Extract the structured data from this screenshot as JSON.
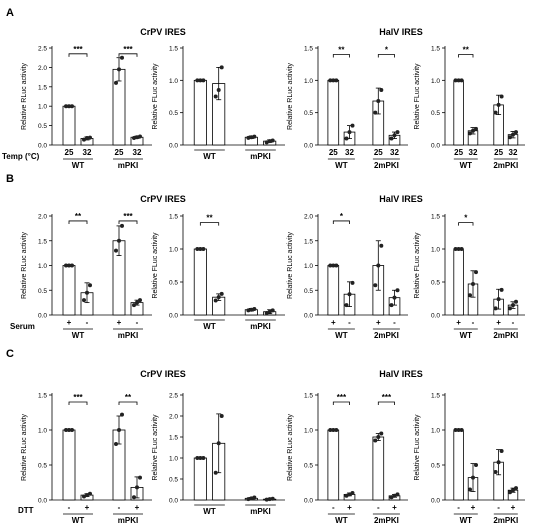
{
  "figure": {
    "section_labels": [
      "A",
      "B",
      "C"
    ],
    "titles": {
      "crpv": "CrPV IRES",
      "halv": "HalV IRES"
    },
    "row_axis_labels": [
      "Temp (°C)",
      "Serum",
      "DTT"
    ]
  },
  "chart_data": [
    {
      "id": "A1",
      "type": "bar",
      "ylabel": "Relative RLuc activity",
      "ylim": [
        0,
        2.5
      ],
      "yticks": [
        0,
        0.5,
        1,
        1.5,
        2,
        2.5
      ],
      "ticklabels": [
        "0.0",
        "0.5",
        "1.0",
        "1.5",
        "2.0",
        "2.5"
      ],
      "groups": [
        "WT",
        "mPKI"
      ],
      "conditions": [
        "25",
        "32"
      ],
      "values": [
        1.0,
        0.17,
        1.95,
        0.2
      ],
      "errors": [
        0,
        0.04,
        0.3,
        0.03
      ],
      "points": [
        [
          1,
          1,
          1
        ],
        [
          0.14,
          0.18,
          0.19
        ],
        [
          1.6,
          1.95,
          2.25
        ],
        [
          0.18,
          0.2,
          0.22
        ]
      ],
      "sig": [
        {
          "bars": [
            0,
            1
          ],
          "label": "***",
          "y": 2.35
        },
        {
          "bars": [
            2,
            3
          ],
          "label": "***",
          "y": 2.35
        }
      ]
    },
    {
      "id": "A2",
      "type": "bar",
      "ylabel": "Relative FLuc activity",
      "ylim": [
        0,
        1.5
      ],
      "yticks": [
        0,
        0.5,
        1,
        1.5
      ],
      "ticklabels": [
        "0.0",
        "0.5",
        "1.0",
        "1.5"
      ],
      "groups": [
        "WT",
        "mPKI"
      ],
      "conditions": [
        "",
        ""
      ],
      "values": [
        1.0,
        0.95,
        0.12,
        0.06
      ],
      "errors": [
        0,
        0.25,
        0.02,
        0.02
      ],
      "points": [
        [
          1,
          1,
          1
        ],
        [
          0.75,
          0.85,
          1.2
        ],
        [
          0.11,
          0.12,
          0.13
        ],
        [
          0.04,
          0.06,
          0.07
        ]
      ],
      "sig": []
    },
    {
      "id": "A3",
      "type": "bar",
      "ylabel": "Relative RLuc activity",
      "ylim": [
        0,
        1.5
      ],
      "yticks": [
        0,
        0.5,
        1,
        1.5
      ],
      "ticklabels": [
        "0.0",
        "0.5",
        "1.0",
        "1.5"
      ],
      "groups": [
        "WT",
        "2mPKI"
      ],
      "conditions": [
        "25",
        "32"
      ],
      "values": [
        1.0,
        0.2,
        0.68,
        0.15
      ],
      "errors": [
        0,
        0.1,
        0.2,
        0.05
      ],
      "points": [
        [
          1,
          1,
          1
        ],
        [
          0.1,
          0.2,
          0.3
        ],
        [
          0.5,
          0.68,
          0.85
        ],
        [
          0.1,
          0.15,
          0.2
        ]
      ],
      "sig": [
        {
          "bars": [
            0,
            1
          ],
          "label": "**",
          "y": 1.4
        },
        {
          "bars": [
            2,
            3
          ],
          "label": "*",
          "y": 1.4
        }
      ]
    },
    {
      "id": "A4",
      "type": "bar",
      "ylabel": "Relative FLuc activity",
      "ylim": [
        0,
        1.5
      ],
      "yticks": [
        0,
        0.5,
        1,
        1.5
      ],
      "ticklabels": [
        "0.0",
        "0.5",
        "1.0",
        "1.5"
      ],
      "groups": [
        "WT",
        "2mPKI"
      ],
      "conditions": [
        "25",
        "32"
      ],
      "values": [
        1.0,
        0.22,
        0.62,
        0.16
      ],
      "errors": [
        0,
        0.05,
        0.15,
        0.05
      ],
      "points": [
        [
          1,
          1,
          1
        ],
        [
          0.18,
          0.22,
          0.25
        ],
        [
          0.5,
          0.62,
          0.75
        ],
        [
          0.12,
          0.16,
          0.2
        ]
      ],
      "sig": [
        {
          "bars": [
            0,
            1
          ],
          "label": "**",
          "y": 1.4
        }
      ]
    },
    {
      "id": "B1",
      "type": "bar",
      "ylabel": "Relative RLuc activity",
      "ylim": [
        0,
        2.0
      ],
      "yticks": [
        0,
        0.5,
        1,
        1.5,
        2
      ],
      "ticklabels": [
        "0.0",
        "0.5",
        "1.0",
        "1.5",
        "2.0"
      ],
      "groups": [
        "WT",
        "mPKI"
      ],
      "conditions": [
        "+",
        "-"
      ],
      "values": [
        1.0,
        0.45,
        1.5,
        0.25
      ],
      "errors": [
        0,
        0.2,
        0.3,
        0.05
      ],
      "points": [
        [
          1,
          1,
          1
        ],
        [
          0.3,
          0.45,
          0.6
        ],
        [
          1.3,
          1.5,
          1.8
        ],
        [
          0.2,
          0.25,
          0.3
        ]
      ],
      "sig": [
        {
          "bars": [
            0,
            1
          ],
          "label": "**",
          "y": 1.9
        },
        {
          "bars": [
            2,
            3
          ],
          "label": "***",
          "y": 1.9
        }
      ]
    },
    {
      "id": "B2",
      "type": "bar",
      "ylabel": "Relative FLuc activity",
      "ylim": [
        0,
        1.5
      ],
      "yticks": [
        0,
        0.5,
        1,
        1.5
      ],
      "ticklabels": [
        "0.0",
        "0.5",
        "1.0",
        "1.5"
      ],
      "groups": [
        "WT",
        "mPKI"
      ],
      "conditions": [
        "",
        ""
      ],
      "values": [
        1.0,
        0.27,
        0.08,
        0.05
      ],
      "errors": [
        0,
        0.05,
        0.02,
        0.03
      ],
      "points": [
        [
          1,
          1,
          1
        ],
        [
          0.22,
          0.27,
          0.32
        ],
        [
          0.07,
          0.08,
          0.09
        ],
        [
          0.03,
          0.05,
          0.07
        ]
      ],
      "sig": [
        {
          "bars": [
            0,
            1
          ],
          "label": "**",
          "y": 1.4
        }
      ]
    },
    {
      "id": "B3",
      "type": "bar",
      "ylabel": "Relative RLuc activity",
      "ylim": [
        0,
        2.0
      ],
      "yticks": [
        0,
        0.5,
        1,
        1.5,
        2
      ],
      "ticklabels": [
        "0.0",
        "0.5",
        "1.0",
        "1.5",
        "2.0"
      ],
      "groups": [
        "WT",
        "2mPKI"
      ],
      "conditions": [
        "+",
        "-"
      ],
      "values": [
        1.0,
        0.42,
        1.0,
        0.35
      ],
      "errors": [
        0,
        0.25,
        0.5,
        0.15
      ],
      "points": [
        [
          1,
          1,
          1
        ],
        [
          0.2,
          0.42,
          0.65
        ],
        [
          0.6,
          1.0,
          1.4
        ],
        [
          0.2,
          0.35,
          0.5
        ]
      ],
      "sig": [
        {
          "bars": [
            0,
            1
          ],
          "label": "*",
          "y": 1.9
        }
      ]
    },
    {
      "id": "B4",
      "type": "bar",
      "ylabel": "Relative FLuc activity",
      "ylim": [
        0,
        1.5
      ],
      "yticks": [
        0,
        0.5,
        1,
        1.5
      ],
      "ticklabels": [
        "0.0",
        "0.5",
        "1.0",
        "1.5"
      ],
      "groups": [
        "WT",
        "2mPKI"
      ],
      "conditions": [
        "+",
        "-"
      ],
      "values": [
        1.0,
        0.47,
        0.24,
        0.15
      ],
      "errors": [
        0,
        0.2,
        0.15,
        0.05
      ],
      "points": [
        [
          1,
          1,
          1
        ],
        [
          0.3,
          0.47,
          0.65
        ],
        [
          0.1,
          0.24,
          0.38
        ],
        [
          0.1,
          0.15,
          0.2
        ]
      ],
      "sig": [
        {
          "bars": [
            0,
            1
          ],
          "label": "*",
          "y": 1.4
        }
      ]
    },
    {
      "id": "C1",
      "type": "bar",
      "ylabel": "Relative RLuc activity",
      "ylim": [
        0,
        1.5
      ],
      "yticks": [
        0,
        0.5,
        1,
        1.5
      ],
      "ticklabels": [
        "0.0",
        "0.5",
        "1.0",
        "1.5"
      ],
      "groups": [
        "WT",
        "mPKI"
      ],
      "conditions": [
        "-",
        "+"
      ],
      "values": [
        1.0,
        0.07,
        1.0,
        0.18
      ],
      "errors": [
        0,
        0.02,
        0.2,
        0.15
      ],
      "points": [
        [
          1,
          1,
          1
        ],
        [
          0.05,
          0.07,
          0.09
        ],
        [
          0.8,
          1.0,
          1.22
        ],
        [
          0.04,
          0.18,
          0.32
        ]
      ],
      "sig": [
        {
          "bars": [
            0,
            1
          ],
          "label": "***",
          "y": 1.4
        },
        {
          "bars": [
            2,
            3
          ],
          "label": "**",
          "y": 1.4
        }
      ]
    },
    {
      "id": "C2",
      "type": "bar",
      "ylabel": "Relative FLuc activity",
      "ylim": [
        0,
        2.5
      ],
      "yticks": [
        0,
        0.5,
        1,
        1.5,
        2,
        2.5
      ],
      "ticklabels": [
        "0.0",
        "0.5",
        "1.0",
        "1.5",
        "2.0",
        "2.5"
      ],
      "groups": [
        "WT",
        "mPKI"
      ],
      "conditions": [
        "",
        ""
      ],
      "values": [
        1.0,
        1.35,
        0.04,
        0.02
      ],
      "errors": [
        0,
        0.7,
        0.02,
        0.01
      ],
      "points": [
        [
          1,
          1,
          1
        ],
        [
          0.65,
          1.35,
          2.0
        ],
        [
          0.02,
          0.04,
          0.06
        ],
        [
          0.01,
          0.02,
          0.03
        ]
      ],
      "sig": []
    },
    {
      "id": "C3",
      "type": "bar",
      "ylabel": "Relative RLuc activity",
      "ylim": [
        0,
        1.5
      ],
      "yticks": [
        0,
        0.5,
        1,
        1.5
      ],
      "ticklabels": [
        "0.0",
        "0.5",
        "1.0",
        "1.5"
      ],
      "groups": [
        "WT",
        "2mPKI"
      ],
      "conditions": [
        "-",
        "+"
      ],
      "values": [
        1.0,
        0.08,
        0.9,
        0.06
      ],
      "errors": [
        0,
        0.02,
        0.05,
        0.02
      ],
      "points": [
        [
          1,
          1,
          1
        ],
        [
          0.06,
          0.08,
          0.1
        ],
        [
          0.85,
          0.9,
          0.95
        ],
        [
          0.04,
          0.06,
          0.08
        ]
      ],
      "sig": [
        {
          "bars": [
            0,
            1
          ],
          "label": "***",
          "y": 1.4
        },
        {
          "bars": [
            2,
            3
          ],
          "label": "***",
          "y": 1.4
        }
      ]
    },
    {
      "id": "C4",
      "type": "bar",
      "ylabel": "Relative FLuc activity",
      "ylim": [
        0,
        1.5
      ],
      "yticks": [
        0,
        0.5,
        1,
        1.5
      ],
      "ticklabels": [
        "0.0",
        "0.5",
        "1.0",
        "1.5"
      ],
      "groups": [
        "WT",
        "2mPKI"
      ],
      "conditions": [
        "-",
        "+"
      ],
      "values": [
        1.0,
        0.32,
        0.54,
        0.14
      ],
      "errors": [
        0,
        0.2,
        0.18,
        0.03
      ],
      "points": [
        [
          1,
          1,
          1
        ],
        [
          0.15,
          0.32,
          0.5
        ],
        [
          0.4,
          0.54,
          0.7
        ],
        [
          0.11,
          0.14,
          0.17
        ]
      ],
      "sig": []
    }
  ]
}
